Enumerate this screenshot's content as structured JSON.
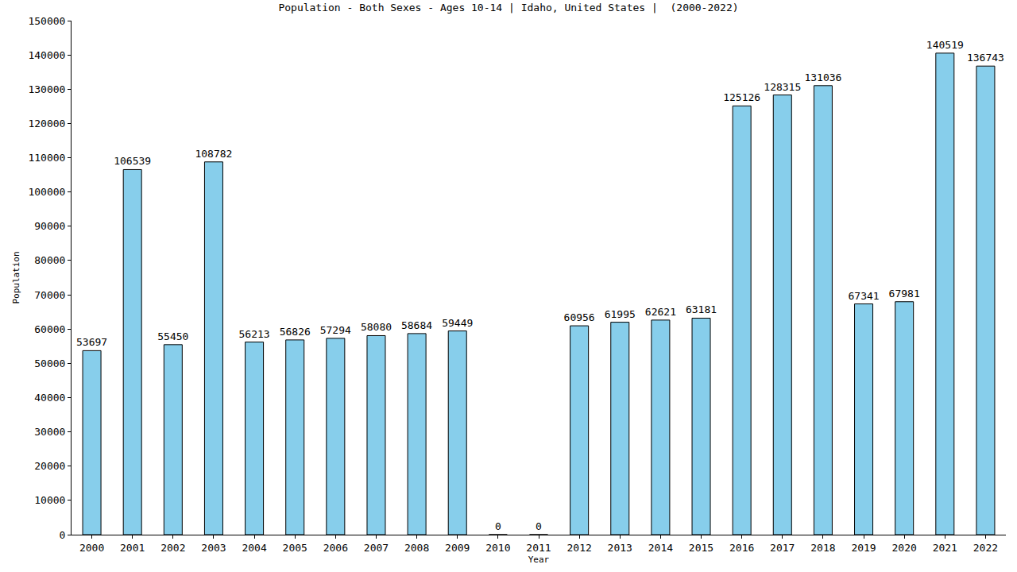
{
  "chart_data": {
    "type": "bar",
    "title": "Population - Both Sexes - Ages 10-14 | Idaho, United States |  (2000-2022)",
    "x_label": "Year",
    "y_label": "Population",
    "categories": [
      "2000",
      "2001",
      "2002",
      "2003",
      "2004",
      "2005",
      "2006",
      "2007",
      "2008",
      "2009",
      "2010",
      "2011",
      "2012",
      "2013",
      "2014",
      "2015",
      "2016",
      "2017",
      "2018",
      "2019",
      "2020",
      "2021",
      "2022"
    ],
    "values": [
      53697,
      106539,
      55450,
      108782,
      56213,
      56826,
      57294,
      58080,
      58684,
      59449,
      0,
      0,
      60956,
      61995,
      62621,
      63181,
      125126,
      128315,
      131036,
      67341,
      67981,
      140519,
      136743
    ],
    "color": "#87ceeb",
    "ylim": [
      0,
      150000
    ],
    "yticks": [
      0,
      10000,
      20000,
      30000,
      40000,
      50000,
      60000,
      70000,
      80000,
      90000,
      100000,
      110000,
      120000,
      130000,
      140000,
      150000
    ],
    "grid": false,
    "data_labels": true
  }
}
